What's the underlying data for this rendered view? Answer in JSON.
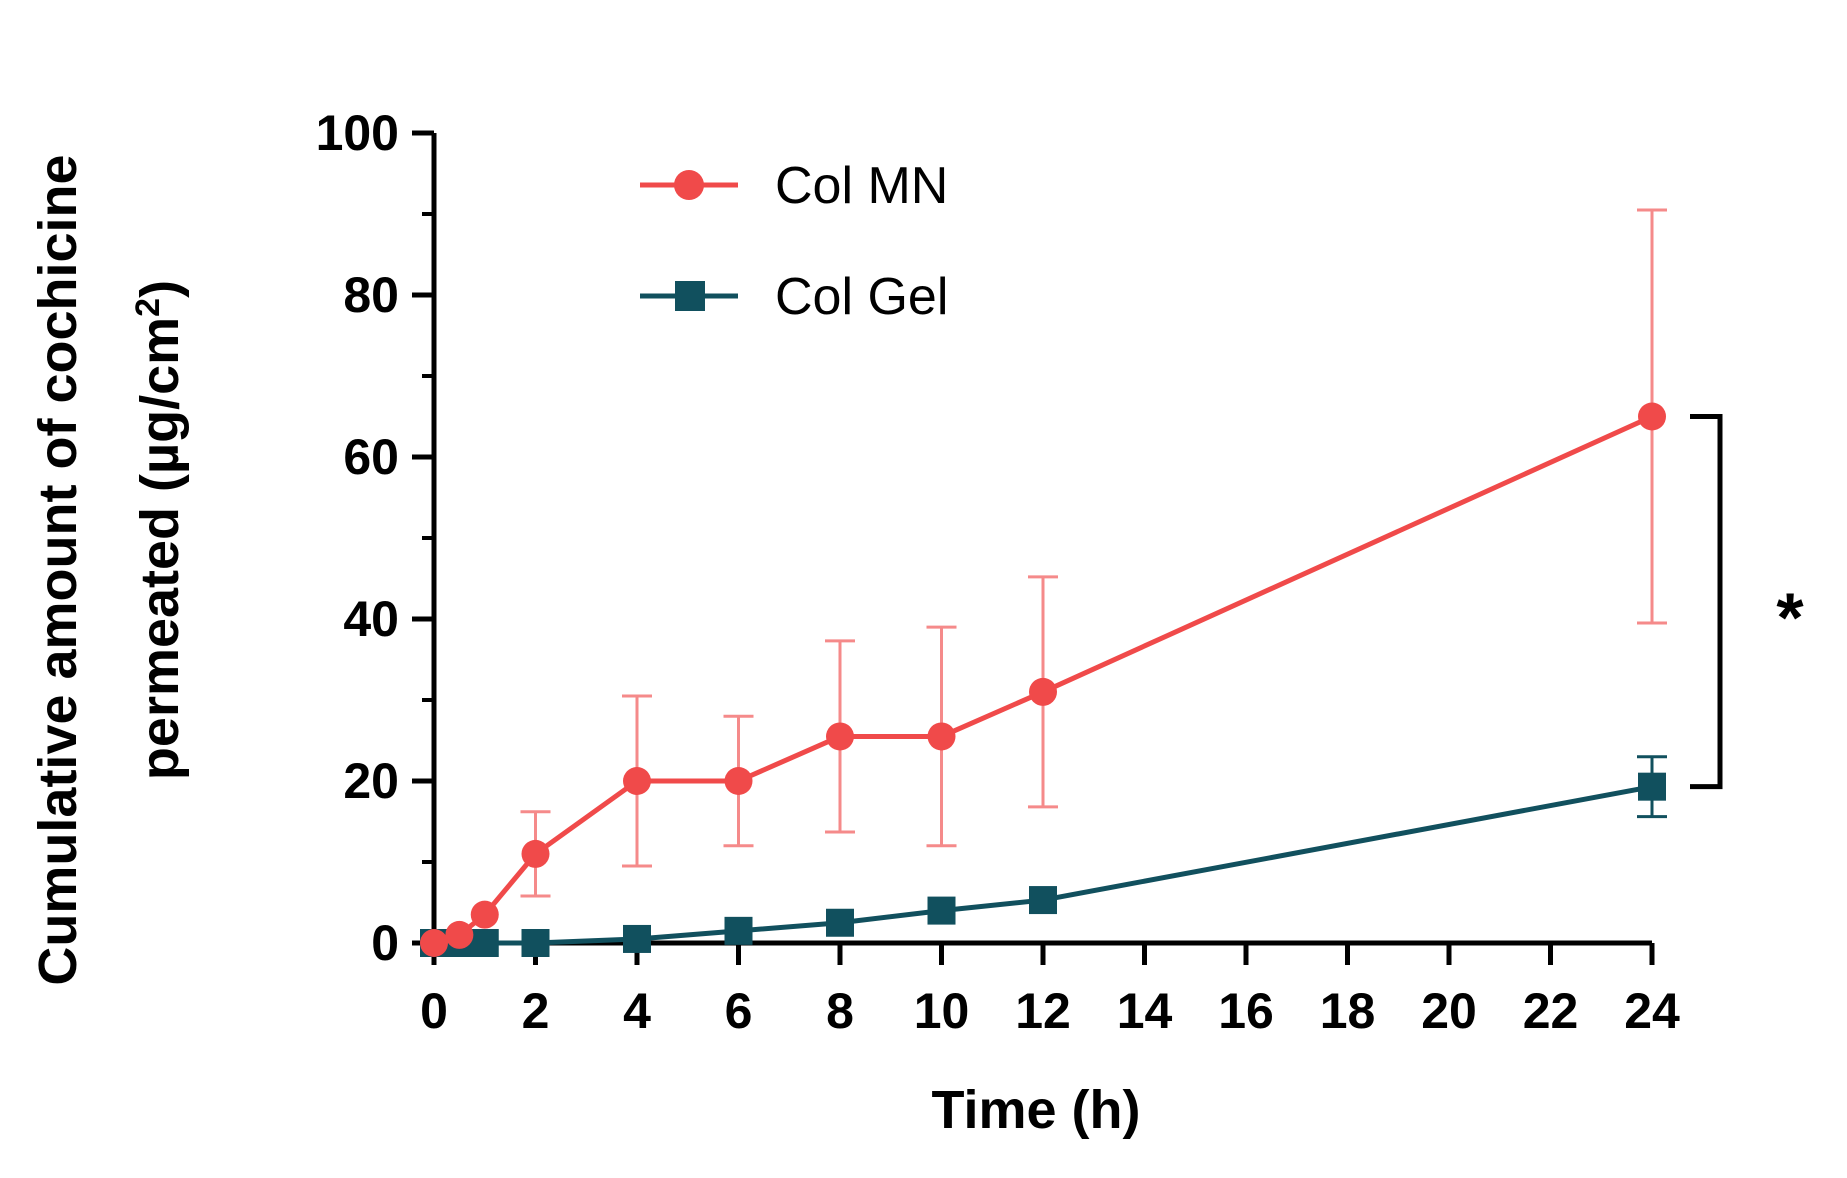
{
  "chart_data": {
    "type": "line",
    "xlabel": "Time (h)",
    "ylabel": {
      "line1": "Cumulative amount of cochicine",
      "line2_prefix": "permeated (µg/cm",
      "superscript": "2",
      "line2_suffix": ")"
    },
    "xlim": [
      0,
      24
    ],
    "ylim": [
      0,
      100
    ],
    "xticks": [
      0,
      2,
      4,
      6,
      8,
      10,
      12,
      14,
      16,
      18,
      20,
      22,
      24
    ],
    "yticks": [
      0,
      20,
      40,
      60,
      80,
      100
    ],
    "grid": false,
    "legend_position": "top-left",
    "series": [
      {
        "name": "Col MN",
        "marker": "circle",
        "color": "#f04a4a",
        "error_color": "#f58a8a",
        "x": [
          0,
          0.5,
          1,
          2,
          4,
          6,
          8,
          10,
          12,
          24
        ],
        "y": [
          0,
          1,
          3.5,
          11,
          20,
          20,
          25.5,
          25.5,
          31,
          65
        ],
        "error": [
          0,
          0,
          0,
          5.2,
          10.5,
          8,
          11.8,
          13.5,
          14.2,
          25.5
        ]
      },
      {
        "name": "Col Gel",
        "marker": "square",
        "color": "#11505e",
        "error_color": "#11505e",
        "x": [
          0,
          0.5,
          1,
          2,
          4,
          6,
          8,
          10,
          12,
          24
        ],
        "y": [
          0,
          0,
          0,
          0,
          0.5,
          1.5,
          2.5,
          4,
          5.3,
          19.3
        ],
        "error": [
          0,
          0,
          0,
          0,
          0,
          0,
          0,
          0,
          0,
          3.7
        ]
      }
    ],
    "annotations": [
      {
        "type": "significance",
        "label": "*",
        "y_from": 19.3,
        "y_to": 65
      }
    ]
  }
}
